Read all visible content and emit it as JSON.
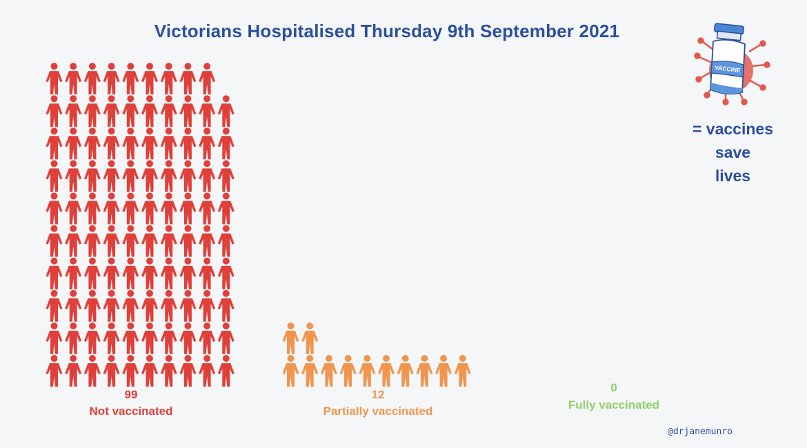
{
  "chart_data": {
    "type": "pictogram",
    "title": "Victorians Hospitalised Thursday 9th September 2021",
    "categories": [
      "Not vaccinated",
      "Partially vaccinated",
      "Fully vaccinated"
    ],
    "values": [
      99,
      12,
      0
    ],
    "count_labels": [
      "99",
      "12",
      "0"
    ],
    "colors": [
      "#e0403a",
      "#f0954e",
      "#8fd06a"
    ],
    "unit": "1 icon = 1 person"
  },
  "legend": {
    "icon_label": "VACCINE",
    "line1": "= vaccines",
    "line2": "save",
    "line3": "lives"
  },
  "credit": "@drjanemunro",
  "colors": {
    "title": "#2a4f9f",
    "background": "#f5f6f8"
  }
}
